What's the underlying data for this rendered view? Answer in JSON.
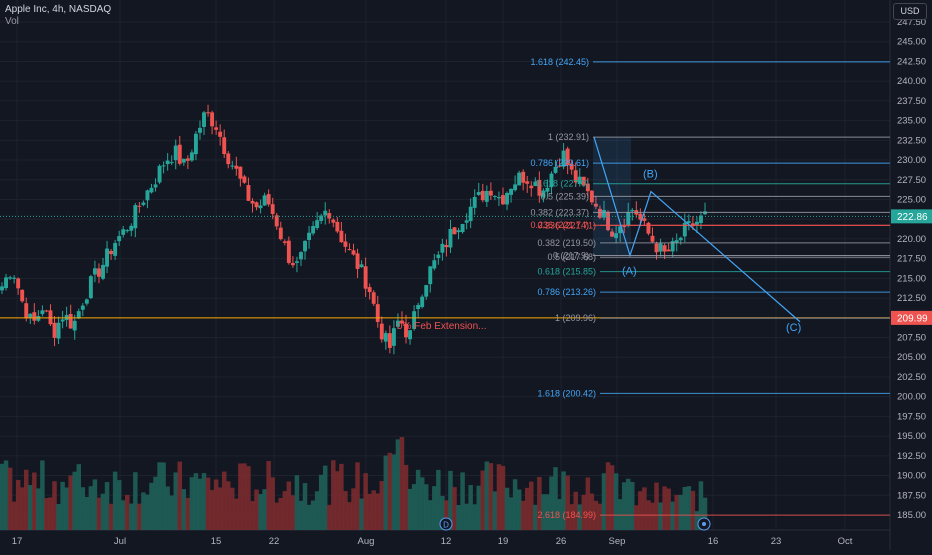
{
  "header": {
    "symbol_line": "Apple Inc, 4h, NASDAQ",
    "volume_label": "Vol"
  },
  "currency_button": "USD",
  "price_axis": {
    "ticks": [
      "247.50",
      "245.00",
      "242.50",
      "240.00",
      "237.50",
      "235.00",
      "232.50",
      "230.00",
      "227.50",
      "225.00",
      "222.50",
      "220.00",
      "217.50",
      "215.00",
      "212.50",
      "210.00",
      "207.50",
      "205.00",
      "202.50",
      "200.00",
      "197.50",
      "195.00",
      "192.50",
      "190.00",
      "187.50",
      "185.00"
    ],
    "last_price_label": "222.86",
    "level_label": "209.99"
  },
  "time_axis": {
    "ticks": [
      "17",
      "Jul",
      "15",
      "22",
      "Aug",
      "12",
      "19",
      "26",
      "Sep",
      "16",
      "23",
      "Oct"
    ]
  },
  "markers": {
    "dividend": "D",
    "earnings_icon": "earnings-icon"
  },
  "fib_upper": {
    "labels": [
      "1.618 (242.45)",
      "1 (232.91)",
      "0.786 (229.61)",
      "0.618 (227.0)",
      "0.5 (225.39)",
      "0.382 (223.37)",
      "0.236 (221.74)",
      "0 (217.9)"
    ]
  },
  "fib_lower": {
    "labels": [
      "0.236 (221.71)",
      "0.382 (219.50)",
      "0.5 (217.68)",
      "0.618 (215.85)",
      "0.786 (213.26)",
      "1 (209.96)",
      "1.618 (200.42)",
      "2.618 (184.99)"
    ]
  },
  "annotations": {
    "wave_a": "(A)",
    "wave_b": "(B)",
    "wave_c": "(C)",
    "feb_extension": "0% Feb Extension..."
  },
  "colors": {
    "background": "#131722",
    "up": "#26a69a",
    "down": "#ef5350",
    "fib_blue": "#42a5f5",
    "fib_gray": "#9598a1",
    "fib_green": "#26a69a",
    "fib_red": "#ef5350",
    "level_orange": "#f7a600"
  },
  "chart_data": {
    "type": "candlestick",
    "symbol": "AAPL",
    "interval": "4h",
    "y_range": [
      184.0,
      249.0
    ],
    "current_price": 222.86,
    "horizontal_level": 209.99,
    "price_series_approx": [
      214.0,
      216.5,
      212.0,
      209.0,
      211.5,
      208.0,
      210.5,
      209.0,
      212.5,
      215.0,
      217.0,
      219.5,
      221.0,
      223.0,
      225.5,
      227.5,
      230.0,
      231.0,
      229.0,
      233.0,
      236.0,
      234.5,
      231.0,
      228.5,
      225.5,
      224.0,
      225.0,
      222.0,
      218.0,
      216.5,
      219.5,
      222.0,
      224.0,
      221.0,
      218.5,
      216.5,
      214.0,
      209.0,
      206.0,
      210.0,
      207.5,
      213.0,
      216.0,
      218.0,
      220.5,
      222.5,
      224.0,
      225.5,
      226.5,
      225.0,
      227.0,
      228.0,
      227.5,
      226.0,
      228.5,
      231.0,
      228.0,
      226.5,
      225.0,
      223.0,
      221.0,
      222.5,
      224.0,
      221.5,
      219.5,
      218.0,
      219.0,
      221.0,
      222.0,
      222.86
    ]
  }
}
